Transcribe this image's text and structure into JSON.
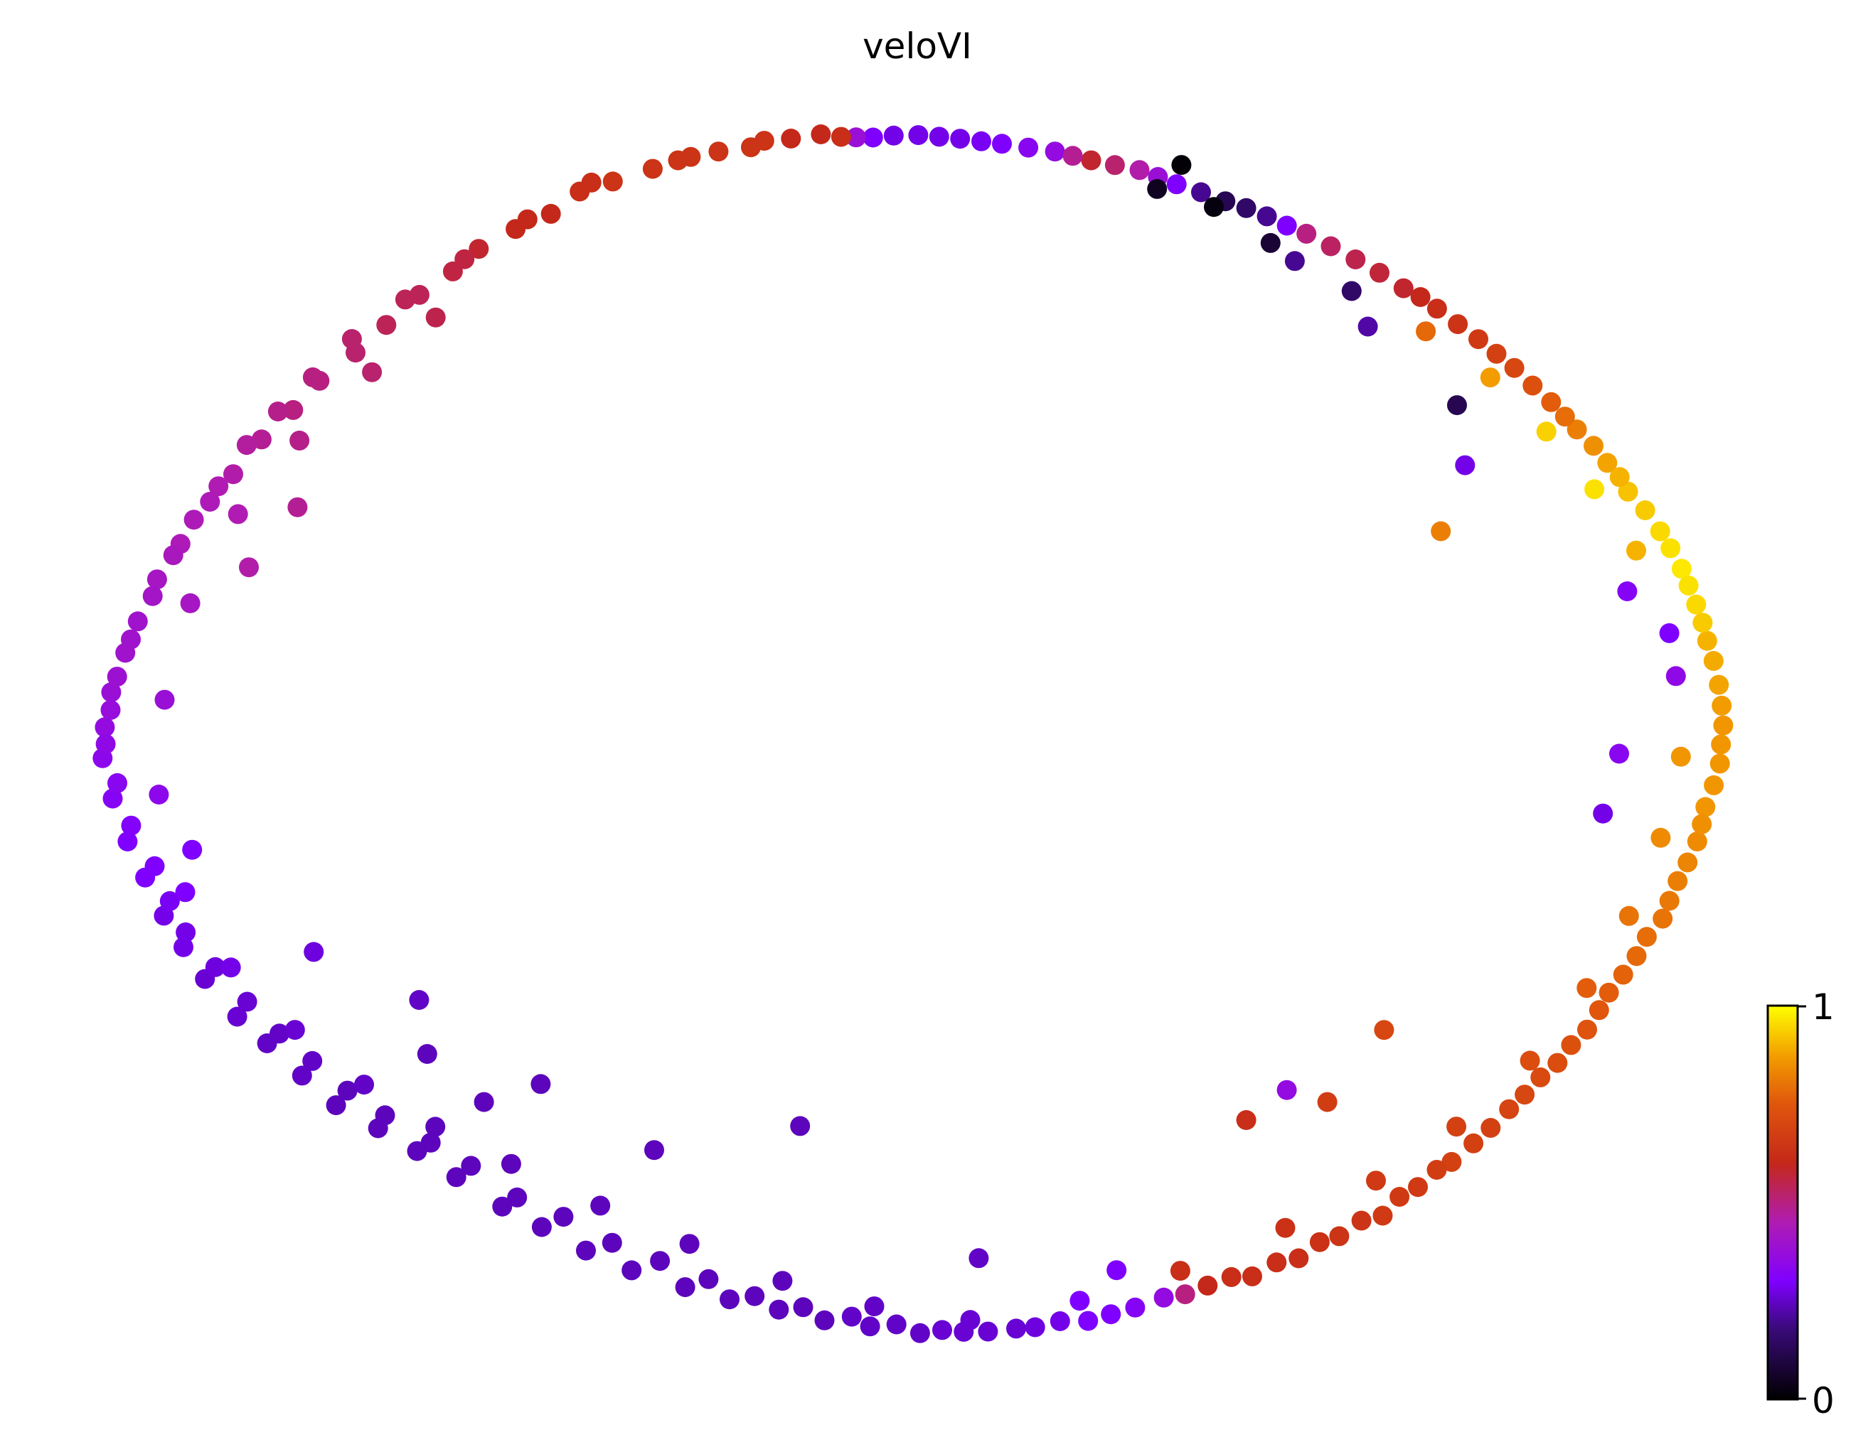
{
  "chart_data": {
    "type": "scatter",
    "title": "veloVI",
    "xlabel": "",
    "ylabel": "",
    "grid": false,
    "axes_visible": false,
    "colormap": "gnuplot",
    "colorbar": {
      "position": "bottom-right",
      "vmin": 0,
      "vmax": 1,
      "tick_labels": [
        "0",
        "1"
      ]
    },
    "xlim": [
      -1,
      1
    ],
    "ylim": [
      -1,
      1
    ],
    "points": [
      [
        -0.0502,
        0.9958,
        0.3
      ],
      [
        -0.0711,
        0.9961,
        0.38
      ],
      [
        -0.1146,
        1.0012,
        0.6
      ],
      [
        -0.1515,
        0.9941,
        0.6
      ],
      [
        -0.2009,
        0.9796,
        0.64
      ],
      [
        -0.2409,
        0.9726,
        0.64
      ],
      [
        -0.2751,
        0.9636,
        0.64
      ],
      [
        -0.322,
        0.9437,
        0.64
      ],
      [
        -0.3712,
        0.9226,
        0.64
      ],
      [
        -0.4121,
        0.9059,
        0.62
      ],
      [
        -0.4476,
        0.8688,
        0.6
      ],
      [
        -0.4911,
        0.8435,
        0.6
      ],
      [
        -0.5366,
        0.8104,
        0.58
      ],
      [
        -0.5685,
        0.7729,
        0.56
      ],
      [
        -0.6097,
        0.7338,
        0.54
      ],
      [
        -0.6506,
        0.6838,
        0.54
      ],
      [
        -0.6886,
        0.6378,
        0.52
      ],
      [
        -0.7331,
        0.5908,
        0.5
      ],
      [
        -0.7655,
        0.5421,
        0.5
      ],
      [
        -0.8045,
        0.4931,
        0.48
      ],
      [
        -0.8395,
        0.4353,
        0.46
      ],
      [
        -0.8682,
        0.3894,
        0.44
      ],
      [
        -0.9046,
        0.3192,
        0.44
      ],
      [
        -0.9334,
        0.2601,
        0.42
      ],
      [
        -0.9572,
        0.1902,
        0.4
      ],
      [
        -0.9726,
        0.1379,
        0.4
      ],
      [
        -0.99,
        0.0722,
        0.38
      ],
      [
        -0.9979,
        0.0138,
        0.36
      ],
      [
        -1.0006,
        -0.0376,
        0.34
      ],
      [
        -0.9882,
        -0.1049,
        0.32
      ],
      [
        -0.9698,
        -0.1763,
        0.3
      ],
      [
        -0.9482,
        -0.2363,
        0.3
      ],
      [
        -0.9251,
        -0.2999,
        0.28
      ],
      [
        -0.9009,
        -0.3523,
        0.28
      ],
      [
        -0.8744,
        -0.4053,
        0.26
      ],
      [
        -0.8346,
        -0.468,
        0.26
      ],
      [
        -0.7977,
        -0.5124,
        0.25
      ],
      [
        -0.7546,
        -0.5661,
        0.25
      ],
      [
        -0.7126,
        -0.6155,
        0.24
      ],
      [
        -0.6608,
        -0.6539,
        0.24
      ],
      [
        -0.6127,
        -0.6918,
        0.24
      ],
      [
        -0.5643,
        -0.7353,
        0.24
      ],
      [
        -0.5076,
        -0.7843,
        0.24
      ],
      [
        -0.4589,
        -0.8184,
        0.24
      ],
      [
        -0.4044,
        -0.8575,
        0.24
      ],
      [
        -0.3481,
        -0.8904,
        0.24
      ],
      [
        -0.2819,
        -0.9185,
        0.24
      ],
      [
        -0.2272,
        -0.9387,
        0.24
      ],
      [
        -0.1664,
        -0.9558,
        0.24
      ],
      [
        -0.1101,
        -0.9737,
        0.24
      ],
      [
        -0.0539,
        -0.9838,
        0.25
      ],
      [
        0.0078,
        -0.995,
        0.25
      ],
      [
        0.0617,
        -0.9928,
        0.26
      ],
      [
        0.1263,
        -0.9874,
        0.26
      ],
      [
        0.1805,
        -0.9751,
        0.28
      ],
      [
        0.2432,
        -0.9636,
        0.3
      ],
      [
        0.3084,
        -0.9358,
        0.36
      ],
      [
        0.3625,
        -0.9159,
        0.6
      ],
      [
        0.4175,
        -0.9005,
        0.62
      ],
      [
        0.4748,
        -0.8704,
        0.62
      ],
      [
        0.5249,
        -0.8336,
        0.64
      ],
      [
        0.5785,
        -0.7994,
        0.66
      ],
      [
        0.6219,
        -0.7517,
        0.66
      ],
      [
        0.6635,
        -0.7099,
        0.68
      ],
      [
        0.7117,
        -0.6532,
        0.68
      ],
      [
        0.7536,
        -0.5979,
        0.7
      ],
      [
        0.7941,
        -0.5451,
        0.72
      ],
      [
        0.8307,
        -0.4896,
        0.74
      ],
      [
        0.8575,
        -0.428,
        0.76
      ],
      [
        0.8917,
        -0.3671,
        0.78
      ],
      [
        0.9239,
        -0.3048,
        0.8
      ],
      [
        0.9423,
        -0.2423,
        0.82
      ],
      [
        0.9665,
        -0.1763,
        0.84
      ],
      [
        0.9766,
        -0.1189,
        0.86
      ],
      [
        0.9945,
        -0.0466,
        0.86
      ],
      [
        0.9986,
        0.0169,
        0.86
      ],
      [
        0.9932,
        0.0845,
        0.88
      ],
      [
        0.9788,
        0.1578,
        0.9
      ],
      [
        0.9652,
        0.2182,
        0.95
      ],
      [
        0.9473,
        0.2778,
        0.97
      ],
      [
        0.9208,
        0.3401,
        0.95
      ],
      [
        0.8811,
        0.4061,
        0.92
      ],
      [
        0.8555,
        0.4541,
        0.88
      ],
      [
        0.8181,
        0.5097,
        0.82
      ],
      [
        0.7862,
        0.5553,
        0.76
      ],
      [
        0.7409,
        0.6122,
        0.7
      ],
      [
        0.6965,
        0.6601,
        0.66
      ],
      [
        0.6455,
        0.7109,
        0.62
      ],
      [
        0.6042,
        0.7449,
        0.58
      ],
      [
        0.545,
        0.7929,
        0.55
      ],
      [
        0.4844,
        0.8356,
        0.5
      ],
      [
        0.4356,
        0.8646,
        0.2
      ],
      [
        0.3845,
        0.8897,
        0.12
      ],
      [
        0.3243,
        0.918,
        0.3
      ],
      [
        0.2785,
        0.9416,
        0.46
      ],
      [
        0.2189,
        0.9579,
        0.58
      ],
      [
        0.1742,
        0.9726,
        0.36
      ],
      [
        0.1088,
        0.9854,
        0.3
      ],
      [
        0.0572,
        0.9938,
        0.28
      ],
      [
        0.0056,
        0.9999,
        0.28
      ],
      [
        -0.0896,
        0.9969,
        0.62
      ],
      [
        -0.1844,
        0.9904,
        0.64
      ],
      [
        -0.2908,
        0.9579,
        0.64
      ],
      [
        -0.3976,
        0.9208,
        0.62
      ],
      [
        -0.4765,
        0.8597,
        0.6
      ],
      [
        -0.5542,
        0.7933,
        0.56
      ],
      [
        -0.6273,
        0.7262,
        0.54
      ],
      [
        -0.6931,
        0.6604,
        0.52
      ],
      [
        -0.7413,
        0.5966,
        0.5
      ],
      [
        -0.7843,
        0.5397,
        0.49
      ],
      [
        -0.8229,
        0.4839,
        0.47
      ],
      [
        -0.8577,
        0.4152,
        0.45
      ],
      [
        -0.8881,
        0.3595,
        0.44
      ],
      [
        -0.9134,
        0.3004,
        0.43
      ],
      [
        -0.9389,
        0.2323,
        0.41
      ],
      [
        -0.9658,
        0.1601,
        0.4
      ],
      [
        -0.9827,
        0.0981,
        0.39
      ],
      [
        -0.9908,
        0.0426,
        0.37
      ],
      [
        -0.9968,
        -0.0141,
        0.35
      ],
      [
        -0.9825,
        -0.0792,
        0.33
      ],
      [
        -0.9654,
        -0.1499,
        0.31
      ],
      [
        -0.9364,
        -0.2175,
        0.3
      ],
      [
        -0.9177,
        -0.2756,
        0.29
      ],
      [
        -0.8982,
        -0.3277,
        0.28
      ],
      [
        -0.8616,
        -0.3856,
        0.27
      ],
      [
        -0.8223,
        -0.4432,
        0.26
      ],
      [
        -0.7825,
        -0.4962,
        0.25
      ],
      [
        -0.7419,
        -0.5419,
        0.25
      ],
      [
        -0.6986,
        -0.5913,
        0.24
      ],
      [
        -0.6522,
        -0.6323,
        0.24
      ],
      [
        -0.5959,
        -0.6779,
        0.24
      ],
      [
        -0.5462,
        -0.7165,
        0.24
      ],
      [
        -0.4893,
        -0.7691,
        0.24
      ],
      [
        -0.4321,
        -0.8013,
        0.24
      ],
      [
        -0.3721,
        -0.8446,
        0.24
      ],
      [
        -0.3131,
        -0.8748,
        0.24
      ],
      [
        -0.2532,
        -0.9051,
        0.24
      ],
      [
        -0.1963,
        -0.9334,
        0.24
      ],
      [
        -0.1364,
        -0.9518,
        0.24
      ],
      [
        -0.0765,
        -0.9676,
        0.25
      ],
      [
        -0.0213,
        -0.9805,
        0.25
      ],
      [
        0.0351,
        -0.9898,
        0.26
      ],
      [
        0.0916,
        -0.9924,
        0.26
      ],
      [
        0.1497,
        -0.9852,
        0.27
      ],
      [
        0.2151,
        -0.9747,
        0.3
      ],
      [
        0.2732,
        -0.9524,
        0.32
      ],
      [
        0.3348,
        -0.9303,
        0.5
      ],
      [
        0.3918,
        -0.9016,
        0.62
      ],
      [
        0.4476,
        -0.8773,
        0.62
      ],
      [
        0.5008,
        -0.8434,
        0.63
      ],
      [
        0.5523,
        -0.8077,
        0.64
      ],
      [
        0.5992,
        -0.7681,
        0.66
      ],
      [
        0.6452,
        -0.7231,
        0.67
      ],
      [
        0.6904,
        -0.6791,
        0.68
      ],
      [
        0.7344,
        -0.6221,
        0.69
      ],
      [
        0.7731,
        -0.5691,
        0.71
      ],
      [
        0.8109,
        -0.5153,
        0.73
      ],
      [
        0.8454,
        -0.4572,
        0.75
      ],
      [
        0.8752,
        -0.3981,
        0.77
      ],
      [
        0.9043,
        -0.3351,
        0.79
      ],
      [
        0.9322,
        -0.2752,
        0.81
      ],
      [
        0.9546,
        -0.2113,
        0.83
      ],
      [
        0.9721,
        -0.1476,
        0.85
      ],
      [
        0.9869,
        -0.0827,
        0.86
      ],
      [
        0.9958,
        -0.0148,
        0.86
      ],
      [
        0.9967,
        0.0498,
        0.87
      ],
      [
        0.9867,
        0.1243,
        0.89
      ],
      [
        0.9732,
        0.1879,
        0.93
      ],
      [
        0.9558,
        0.2498,
        0.96
      ],
      [
        0.9335,
        0.3119,
        0.96
      ],
      [
        0.9023,
        0.3751,
        0.93
      ],
      [
        0.8708,
        0.4304,
        0.9
      ],
      [
        0.8386,
        0.4825,
        0.85
      ],
      [
        0.8033,
        0.5311,
        0.79
      ],
      [
        0.7634,
        0.5828,
        0.73
      ],
      [
        0.7189,
        0.6357,
        0.68
      ],
      [
        0.6711,
        0.6851,
        0.64
      ],
      [
        0.6251,
        0.7302,
        0.6
      ],
      [
        0.5746,
        0.7707,
        0.57
      ],
      [
        0.5145,
        0.8148,
        0.53
      ],
      [
        0.4603,
        0.8491,
        0.3
      ],
      [
        0.4102,
        0.8783,
        0.15
      ],
      [
        0.3544,
        0.9047,
        0.2
      ],
      [
        0.3012,
        0.9302,
        0.38
      ],
      [
        0.2482,
        0.9499,
        0.52
      ],
      [
        0.1961,
        0.9653,
        0.48
      ],
      [
        0.1413,
        0.9791,
        0.33
      ],
      [
        0.0833,
        0.9896,
        0.29
      ],
      [
        0.0314,
        0.9972,
        0.28
      ],
      [
        -0.0247,
        0.9991,
        0.28
      ],
      [
        -0.5897,
        0.6962,
        0.55
      ],
      [
        -0.6683,
        0.6051,
        0.52
      ],
      [
        -0.7578,
        0.4913,
        0.49
      ],
      [
        -0.8336,
        0.3688,
        0.45
      ],
      [
        -0.8925,
        0.2204,
        0.42
      ],
      [
        -0.9241,
        0.0596,
        0.38
      ],
      [
        -0.9312,
        -0.0982,
        0.34
      ],
      [
        -0.8987,
        -0.2607,
        0.3
      ],
      [
        -0.8424,
        -0.3862,
        0.28
      ],
      [
        -0.7633,
        -0.4901,
        0.26
      ],
      [
        -0.6781,
        -0.5812,
        0.25
      ],
      [
        -0.5902,
        -0.6514,
        0.24
      ],
      [
        -0.4966,
        -0.7133,
        0.24
      ],
      [
        -0.3867,
        -0.7827,
        0.24
      ],
      [
        -0.2767,
        -0.8464,
        0.24
      ],
      [
        -0.1619,
        -0.9079,
        0.24
      ],
      [
        -0.0487,
        -0.9504,
        0.25
      ],
      [
        0.0697,
        -0.9731,
        0.26
      ],
      [
        0.2047,
        -0.9411,
        0.3
      ],
      [
        0.3289,
        -0.8912,
        0.62
      ],
      [
        0.4583,
        -0.8198,
        0.63
      ],
      [
        0.5702,
        -0.7411,
        0.66
      ],
      [
        0.6694,
        -0.6511,
        0.68
      ],
      [
        0.7602,
        -0.5413,
        0.72
      ],
      [
        0.8301,
        -0.4204,
        0.76
      ],
      [
        0.8823,
        -0.3003,
        0.8
      ],
      [
        0.9214,
        -0.1702,
        0.84
      ],
      [
        0.9463,
        -0.0352,
        0.86
      ],
      [
        0.9402,
        0.0991,
        0.35
      ],
      [
        0.9321,
        0.1705,
        0.3
      ],
      [
        0.8912,
        0.3081,
        0.9
      ],
      [
        0.8396,
        0.4102,
        0.96
      ],
      [
        0.7804,
        0.5062,
        0.94
      ],
      [
        0.7112,
        0.5963,
        0.87
      ],
      [
        0.6317,
        0.6731,
        0.78
      ],
      [
        0.5602,
        0.6811,
        0.22
      ],
      [
        0.5402,
        0.7402,
        0.15
      ],
      [
        0.4701,
        0.7902,
        0.2
      ],
      [
        0.6801,
        0.4502,
        0.28
      ],
      [
        0.6702,
        0.5502,
        0.12
      ],
      [
        0.8802,
        0.2402,
        0.32
      ],
      [
        0.8702,
        -0.0302,
        0.33
      ],
      [
        0.8502,
        -0.1298,
        0.28
      ],
      [
        0.6502,
        0.3402,
        0.82
      ],
      [
        0.5802,
        -0.4902,
        0.7
      ],
      [
        0.5102,
        -0.6102,
        0.67
      ],
      [
        0.4602,
        -0.5902,
        0.36
      ],
      [
        0.4102,
        -0.6402,
        0.62
      ],
      [
        -0.8902,
        -0.1902,
        0.3
      ],
      [
        -0.7402,
        -0.3602,
        0.27
      ],
      [
        -0.6102,
        -0.4402,
        0.25
      ],
      [
        -0.4602,
        -0.5802,
        0.24
      ],
      [
        -0.3202,
        -0.6902,
        0.24
      ],
      [
        -0.1402,
        -0.6502,
        0.24
      ],
      [
        0.0802,
        -0.8702,
        0.25
      ],
      [
        0.2502,
        -0.8902,
        0.3
      ],
      [
        -0.6002,
        -0.5302,
        0.24
      ],
      [
        -0.5302,
        -0.6102,
        0.24
      ],
      [
        -0.7602,
        0.3802,
        0.48
      ],
      [
        -0.8202,
        0.2802,
        0.46
      ],
      [
        0.3002,
        0.9102,
        0.05
      ],
      [
        0.3702,
        0.8802,
        0.02
      ],
      [
        0.3302,
        0.9502,
        0.01
      ],
      [
        0.4402,
        0.8202,
        0.08
      ]
    ]
  }
}
